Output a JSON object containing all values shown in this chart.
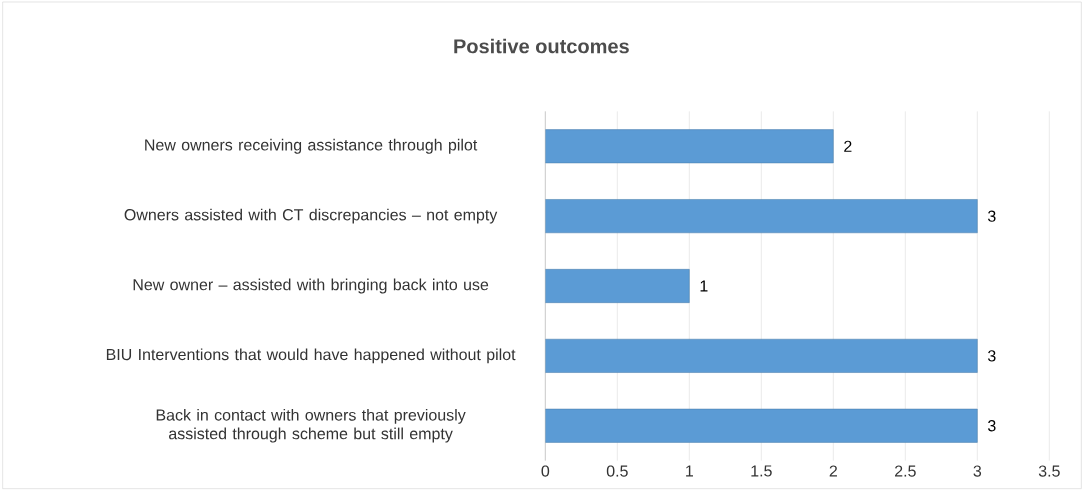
{
  "chart_data": {
    "type": "bar",
    "orientation": "horizontal",
    "title": "Positive outcomes",
    "categories": [
      "New owners receiving assistance through pilot",
      "Owners assisted with CT discrepancies – not empty",
      "New owner – assisted with bringing back into use",
      "BIU Interventions that would have happened without pilot",
      "Back in contact with owners that previously assisted through scheme but still empty"
    ],
    "values": [
      2,
      3,
      1,
      3,
      3
    ],
    "color": "#5b9bd5",
    "xlim": [
      0,
      3.5
    ],
    "xticks": [
      0,
      0.5,
      1,
      1.5,
      2,
      2.5,
      3,
      3.5
    ],
    "grid": "x",
    "data_labels": true
  }
}
